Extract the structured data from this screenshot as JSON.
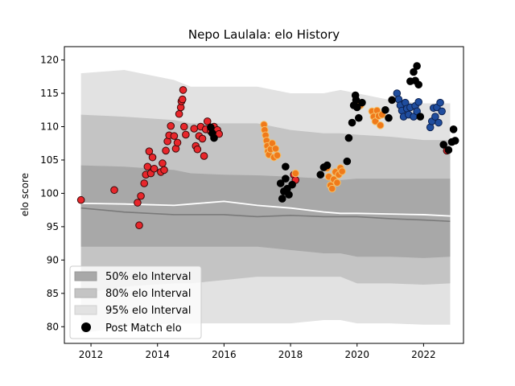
{
  "chart_data": {
    "type": "scatter",
    "title": "Nepo Laulala: elo History",
    "xlabel": "",
    "ylabel": "elo score",
    "xlim": [
      2011.2,
      2023.2
    ],
    "ylim": [
      77.5,
      122
    ],
    "xticks": [
      2012,
      2014,
      2016,
      2018,
      2020,
      2022
    ],
    "yticks": [
      80,
      85,
      90,
      95,
      100,
      105,
      110,
      115,
      120
    ],
    "legend_position": "bottom-left",
    "legend": [
      {
        "label": "50% elo Interval",
        "kind": "band50"
      },
      {
        "label": "80% elo Interval",
        "kind": "band80"
      },
      {
        "label": "95% elo Interval",
        "kind": "band95"
      },
      {
        "label": "Post Match elo",
        "kind": "marker"
      }
    ],
    "colors": {
      "band50": "#a8a8a8",
      "band80": "#c4c4c4",
      "band95": "#e2e2e2",
      "median_line": "#7a7a7a",
      "mean_line": "#ffffff",
      "marker_black": "#000000",
      "marker_red": "#e8262b",
      "marker_red_edge": "#3a0a0a",
      "marker_orange": "#f07a1a",
      "marker_orange_edge": "#f5c16a",
      "marker_blue": "#1f4d9e",
      "marker_blue_edge": "#0d2250"
    },
    "intervals": {
      "x": [
        2011.7,
        2013,
        2014.5,
        2015,
        2016,
        2017,
        2018,
        2019,
        2019.5,
        2020,
        2021,
        2022,
        2022.8
      ],
      "p95_low": [
        79,
        80,
        80.5,
        80.5,
        80.5,
        80.5,
        80.5,
        81,
        81,
        80.5,
        80.5,
        80.3,
        80.3
      ],
      "p95_high": [
        118,
        118.5,
        117,
        116,
        116,
        116,
        115,
        115,
        115.5,
        115,
        114,
        113.5,
        113.5
      ],
      "p80_low": [
        85,
        86,
        86.5,
        86.5,
        87,
        87.5,
        87.5,
        87.5,
        87.5,
        86.5,
        86.5,
        86.3,
        86.5
      ],
      "p80_high": [
        111.8,
        111.5,
        111,
        110.5,
        110.5,
        110.5,
        109.5,
        109,
        109,
        108.8,
        108.5,
        108,
        108
      ],
      "p50_low": [
        92,
        92,
        92,
        92,
        92,
        92,
        91.5,
        91,
        91,
        90.5,
        90.5,
        90.3,
        90.5
      ],
      "p50_high": [
        104.2,
        104,
        103.5,
        103,
        102.8,
        102.7,
        102.5,
        102.2,
        102,
        102.2,
        102.2,
        102.2,
        102.2
      ],
      "median": [
        97.8,
        97.2,
        96.8,
        96.8,
        96.8,
        96.5,
        96.7,
        96.5,
        96.5,
        96.5,
        96.2,
        96,
        95.8
      ],
      "mean": [
        98.5,
        98.4,
        98.2,
        98.4,
        98.8,
        98.2,
        97.8,
        97.2,
        97,
        97,
        96.9,
        96.8,
        96.6
      ]
    },
    "series": [
      {
        "color": "red",
        "points": [
          [
            2011.7,
            99
          ],
          [
            2012.7,
            100.5
          ],
          [
            2013.4,
            98.6
          ],
          [
            2013.45,
            95.2
          ],
          [
            2013.5,
            99.6
          ],
          [
            2013.6,
            101.5
          ],
          [
            2013.65,
            102.8
          ],
          [
            2013.7,
            104
          ],
          [
            2013.75,
            106.3
          ],
          [
            2013.8,
            103
          ],
          [
            2013.85,
            105.4
          ],
          [
            2013.9,
            103.7
          ],
          [
            2014.1,
            103.2
          ],
          [
            2014.15,
            104.5
          ],
          [
            2014.2,
            103.5
          ],
          [
            2014.25,
            106.4
          ],
          [
            2014.3,
            107.8
          ],
          [
            2014.35,
            108.7
          ],
          [
            2014.4,
            110.1
          ],
          [
            2014.5,
            108.6
          ],
          [
            2014.55,
            106.7
          ],
          [
            2014.6,
            107.6
          ],
          [
            2014.65,
            111.9
          ],
          [
            2014.7,
            112.9
          ],
          [
            2014.72,
            113.8
          ],
          [
            2014.75,
            114.1
          ],
          [
            2014.77,
            115.5
          ],
          [
            2014.8,
            110
          ],
          [
            2014.85,
            108.8
          ],
          [
            2015.1,
            109.7
          ],
          [
            2015.15,
            107.1
          ],
          [
            2015.2,
            106.6
          ],
          [
            2015.25,
            108.6
          ],
          [
            2015.3,
            110
          ],
          [
            2015.35,
            108.2
          ],
          [
            2015.4,
            105.6
          ],
          [
            2015.45,
            109.6
          ],
          [
            2015.5,
            110.8
          ],
          [
            2015.6,
            109.3
          ],
          [
            2015.7,
            110
          ],
          [
            2015.8,
            109.5
          ],
          [
            2015.85,
            108.9
          ],
          [
            2018.1,
            102.8
          ],
          [
            2018.15,
            102
          ]
        ]
      },
      {
        "color": "orange",
        "points": [
          [
            2017.2,
            110.3
          ],
          [
            2017.22,
            109.5
          ],
          [
            2017.25,
            108.7
          ],
          [
            2017.28,
            107.9
          ],
          [
            2017.3,
            107.1
          ],
          [
            2017.32,
            106.3
          ],
          [
            2017.35,
            105.8
          ],
          [
            2017.4,
            106.6
          ],
          [
            2017.45,
            107.5
          ],
          [
            2017.5,
            105.4
          ],
          [
            2017.55,
            106.7
          ],
          [
            2017.6,
            105.7
          ],
          [
            2018.15,
            103
          ],
          [
            2019.1,
            103.8
          ],
          [
            2019.15,
            102.5
          ],
          [
            2019.2,
            101.2
          ],
          [
            2019.25,
            100.7
          ],
          [
            2019.3,
            102.1
          ],
          [
            2019.35,
            103.2
          ],
          [
            2019.4,
            101.6
          ],
          [
            2019.45,
            102.8
          ],
          [
            2019.5,
            103.8
          ],
          [
            2019.55,
            103.3
          ],
          [
            2020.1,
            113.2
          ],
          [
            2020.45,
            112.3
          ],
          [
            2020.5,
            111.5
          ],
          [
            2020.55,
            110.8
          ],
          [
            2020.6,
            112.4
          ],
          [
            2020.65,
            111.6
          ],
          [
            2020.7,
            110.2
          ],
          [
            2020.75,
            111.8
          ]
        ]
      },
      {
        "color": "blue",
        "points": [
          [
            2021.2,
            115
          ],
          [
            2021.25,
            114.1
          ],
          [
            2021.3,
            113.2
          ],
          [
            2021.35,
            112.4
          ],
          [
            2021.4,
            111.5
          ],
          [
            2021.45,
            113.6
          ],
          [
            2021.5,
            112.7
          ],
          [
            2021.55,
            111.8
          ],
          [
            2021.6,
            112.9
          ],
          [
            2021.7,
            111.5
          ],
          [
            2021.75,
            113.1
          ],
          [
            2021.8,
            112.3
          ],
          [
            2021.85,
            113.7
          ],
          [
            2022.2,
            109.9
          ],
          [
            2022.25,
            110.8
          ],
          [
            2022.3,
            112.8
          ],
          [
            2022.35,
            111.5
          ],
          [
            2022.4,
            112.9
          ],
          [
            2022.45,
            110.6
          ],
          [
            2022.5,
            113.6
          ],
          [
            2022.55,
            112.3
          ]
        ]
      },
      {
        "color": "red",
        "points": [
          [
            2022.7,
            106.4
          ]
        ]
      },
      {
        "color": "black",
        "points": [
          [
            2015.6,
            109.9
          ],
          [
            2015.65,
            109
          ],
          [
            2015.7,
            108.3
          ],
          [
            2017.7,
            101.5
          ],
          [
            2017.75,
            99.2
          ],
          [
            2017.8,
            100.3
          ],
          [
            2017.85,
            102.2
          ],
          [
            2017.9,
            100.7
          ],
          [
            2017.95,
            99.8
          ],
          [
            2017.85,
            104
          ],
          [
            2018.05,
            101.3
          ],
          [
            2018.9,
            102.8
          ],
          [
            2019.0,
            103.9
          ],
          [
            2019.1,
            104.2
          ],
          [
            2019.7,
            104.8
          ],
          [
            2019.75,
            108.3
          ],
          [
            2019.85,
            110.6
          ],
          [
            2019.9,
            113.2
          ],
          [
            2019.95,
            114.7
          ],
          [
            2019.97,
            114
          ],
          [
            2020.0,
            112.9
          ],
          [
            2020.05,
            111.3
          ],
          [
            2020.15,
            113.6
          ],
          [
            2020.85,
            112.5
          ],
          [
            2020.95,
            111.3
          ],
          [
            2021.05,
            114
          ],
          [
            2021.6,
            116.8
          ],
          [
            2021.7,
            118.2
          ],
          [
            2021.75,
            116.9
          ],
          [
            2021.8,
            119.1
          ],
          [
            2021.85,
            116.3
          ],
          [
            2021.9,
            111.5
          ],
          [
            2022.6,
            107.3
          ],
          [
            2022.75,
            106.5
          ],
          [
            2022.85,
            107.7
          ],
          [
            2022.9,
            109.6
          ],
          [
            2022.95,
            107.9
          ]
        ]
      }
    ]
  }
}
